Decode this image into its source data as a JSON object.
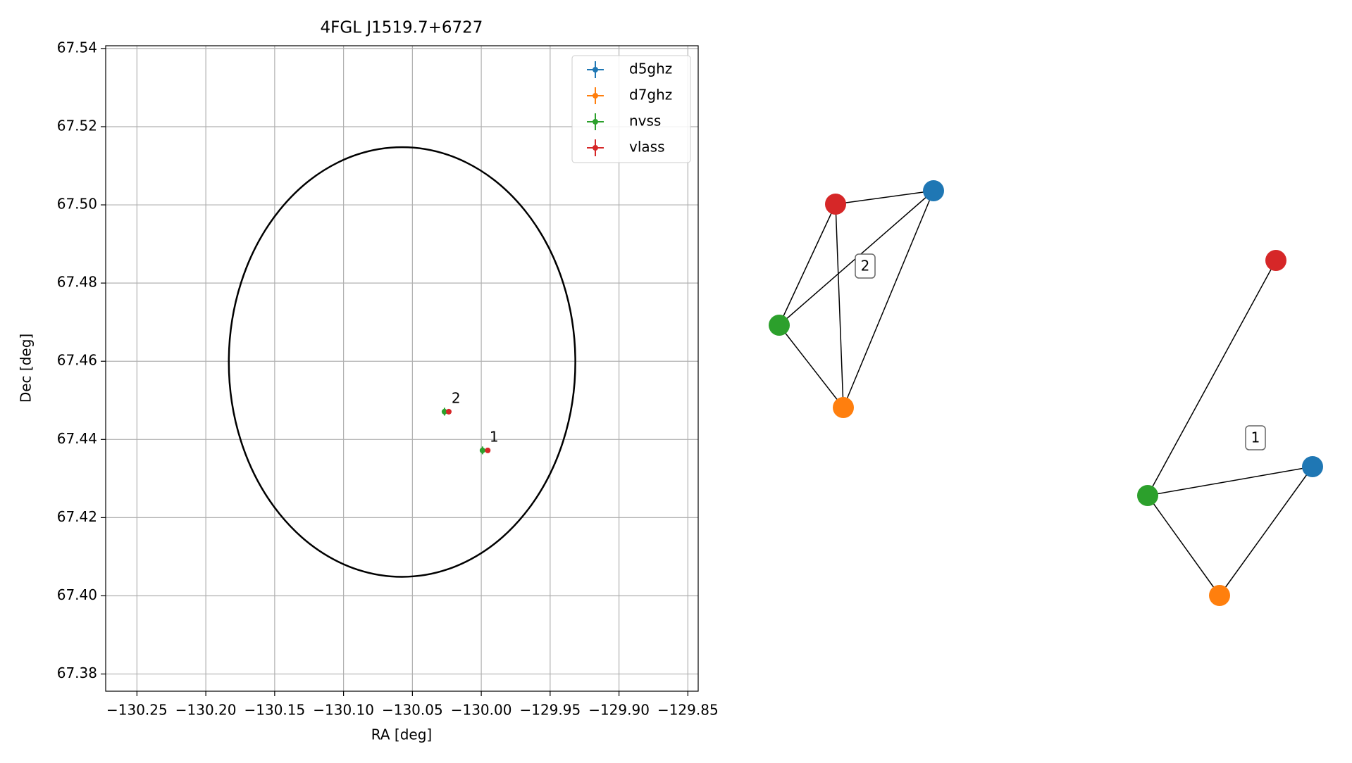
{
  "chart_data": {
    "type": "scatter",
    "title": "4FGL J1519.7+6727",
    "x_label": "RA [deg]",
    "y_label": "Dec [deg]",
    "xlim": [
      -130.2727,
      -129.8425
    ],
    "ylim": [
      67.3756,
      67.5407
    ],
    "xticks": [
      {
        "value": -130.25,
        "label": "−130.25"
      },
      {
        "value": -130.2,
        "label": "−130.20"
      },
      {
        "value": -130.15,
        "label": "−130.15"
      },
      {
        "value": -130.1,
        "label": "−130.10"
      },
      {
        "value": -130.05,
        "label": "−130.05"
      },
      {
        "value": -130.0,
        "label": "−130.00"
      },
      {
        "value": -129.95,
        "label": "−129.95"
      },
      {
        "value": -129.9,
        "label": "−129.90"
      },
      {
        "value": -129.85,
        "label": "−129.85"
      }
    ],
    "yticks": [
      67.38,
      {
        "value": 67.4,
        "label": "67.40"
      },
      67.42,
      67.44,
      67.46,
      67.48,
      {
        "value": 67.5,
        "label": "67.50"
      },
      67.52,
      67.54
    ],
    "grid": true,
    "legend": "upper right",
    "ellipse": {
      "center": [
        -130.0575,
        67.4598
      ],
      "width": 0.2516,
      "height": 0.1099,
      "color": "#000000"
    },
    "series": [
      {
        "name": "d5ghz",
        "color": "#1f77b4",
        "x": [],
        "values": [],
        "xerr": [],
        "yerr": []
      },
      {
        "name": "d7ghz",
        "color": "#ff7f0e",
        "x": [],
        "values": [],
        "xerr": [],
        "yerr": []
      },
      {
        "name": "nvss",
        "color": "#2ca02c",
        "x": [
          -130.0267,
          -129.9991
        ],
        "values": [
          67.4471,
          67.4372
        ],
        "xerr": [
          0.0015,
          0.0015
        ],
        "yerr": [
          0.001,
          0.001
        ]
      },
      {
        "name": "vlass",
        "color": "#d62728",
        "x": [
          -130.0236,
          -129.9953
        ],
        "values": [
          67.4471,
          67.4372
        ],
        "xerr": [
          0.0003,
          0.0003
        ],
        "yerr": [
          0.0003,
          0.0003
        ]
      }
    ],
    "annotations": [
      {
        "text": "2",
        "x": -130.0267,
        "y": 67.4471
      },
      {
        "text": "1",
        "x": -129.9991,
        "y": 67.4372
      }
    ]
  },
  "graphs": {
    "labels": [
      "2",
      "1"
    ]
  }
}
